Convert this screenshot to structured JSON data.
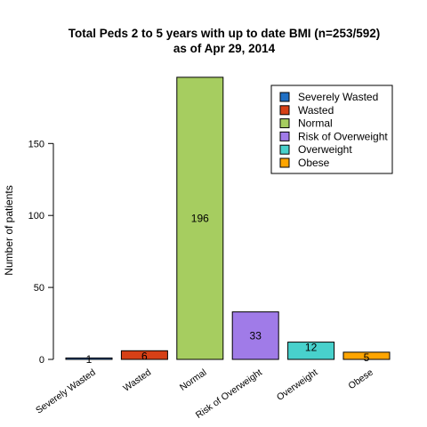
{
  "chart_data": {
    "type": "bar",
    "title": "Total Peds 2 to 5 years with up to date BMI (n=253/592)",
    "subtitle": "as of Apr 29, 2014",
    "xlabel": "",
    "ylabel": "Number of patients",
    "categories": [
      "Severely Wasted",
      "Wasted",
      "Normal",
      "Risk of Overweight",
      "Overweight",
      "Obese"
    ],
    "values": [
      1,
      6,
      196,
      33,
      12,
      5
    ],
    "data_labels": [
      "1",
      "6",
      "196",
      "33",
      "12",
      "5"
    ],
    "colors": [
      "#1f6fc4",
      "#d64016",
      "#a6cd60",
      "#a07be8",
      "#48d1cc",
      "#ffa500"
    ],
    "ylim": [
      0,
      200
    ],
    "yticks": [
      0,
      50,
      100,
      150
    ],
    "ytick_labels": [
      "0",
      "50",
      "100",
      "150"
    ],
    "grid": false,
    "legend": {
      "placement": "top-right",
      "entries": [
        "Severely Wasted",
        "Wasted",
        "Normal",
        "Risk of Overweight",
        "Overweight",
        "Obese"
      ]
    }
  }
}
